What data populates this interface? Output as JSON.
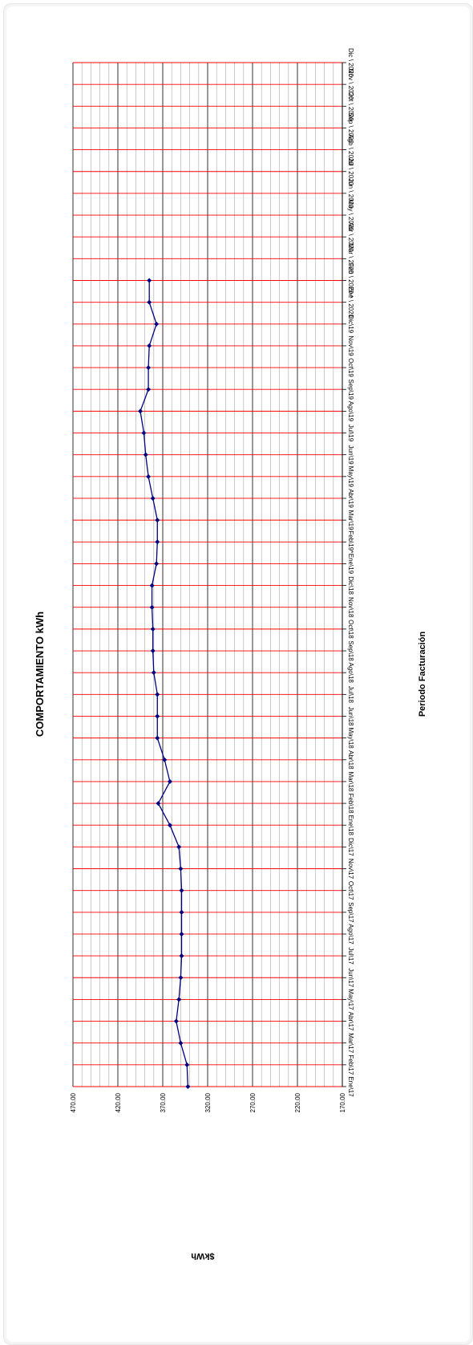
{
  "chart_data": {
    "type": "line",
    "title": "COMPORTAMIENTO kWh",
    "xlabel": "Periodo Facturación",
    "ylabel": "$kWh",
    "ylim": [
      170,
      470
    ],
    "y_ticks": [
      "470.00",
      "420.00",
      "370.00",
      "320.00",
      "270.00",
      "220.00",
      "170.00"
    ],
    "categories": [
      "Ene\\17",
      "Feb\\17",
      "Mar\\17",
      "Abr\\17",
      "May\\17",
      "Jun\\17",
      "Jul\\17",
      "Ago\\17",
      "Sep\\17",
      "Oct\\17",
      "Nov\\17",
      "Dic\\17",
      "Ene\\18",
      "Feb\\18",
      "Mar\\18",
      "Abr\\18",
      "May\\18",
      "Jun\\18",
      "Jul\\18",
      "Ago\\18",
      "Sep\\18",
      "Oct\\18",
      "Nov\\18",
      "Dic\\18",
      "Ene\\19",
      "Feb\\19*",
      "Mar\\19",
      "Abr\\19",
      "May\\19",
      "Jun\\19",
      "Jul\\19",
      "Ago\\19",
      "Sep\\19",
      "Oct\\19",
      "Nov\\19",
      "Dic\\19",
      "Ene \\ 2020",
      "Feb \\ 2020 *",
      "Mar \\ 2020",
      "Abr \\ 2020",
      "May \\ 2020",
      "Jun \\ 2020",
      "Jul \\ 2020",
      "Ago \\ 2020",
      "Sep \\ 2020",
      "Oct \\ 2020",
      "Nov \\ 2020",
      "Dic \\ 2020"
    ],
    "series": [
      {
        "color": "#000080",
        "values": [
          342,
          343,
          350,
          355,
          352,
          350,
          349,
          349,
          349,
          349,
          350,
          352,
          362,
          375,
          362,
          368,
          376,
          376,
          376,
          380,
          381,
          381,
          382,
          382,
          377,
          376,
          376,
          381,
          386,
          389,
          391,
          395,
          386,
          386,
          385,
          377,
          385,
          385,
          null,
          null,
          null,
          null,
          null,
          null,
          null,
          null,
          null,
          null
        ]
      }
    ],
    "grid": true,
    "colors": {
      "category_grid": "#ff0000",
      "major_grid": "#000000",
      "minor_grid": "#b3b3b3",
      "marker": "#000080"
    },
    "orientation": "rotated-90-clockwise"
  }
}
